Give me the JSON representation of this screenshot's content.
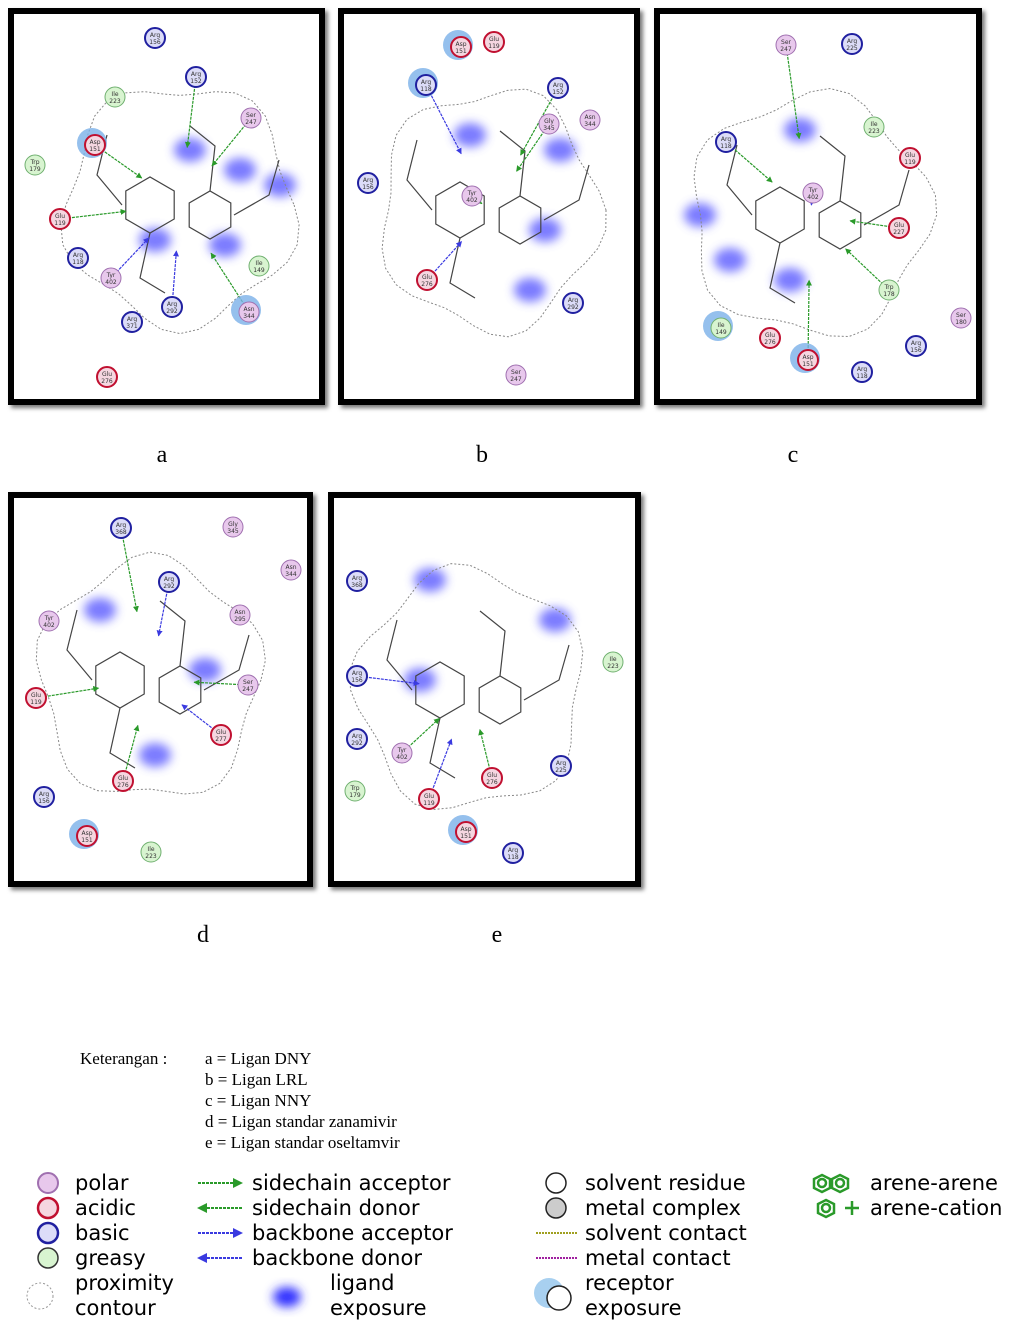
{
  "panels": [
    {
      "label": "a",
      "residues": [
        {
          "name": "Arg",
          "number": "156",
          "type": "basic"
        },
        {
          "name": "Arg",
          "number": "152",
          "type": "basic"
        },
        {
          "name": "Ile",
          "number": "223",
          "type": "greasy"
        },
        {
          "name": "Ser",
          "number": "247",
          "type": "polar"
        },
        {
          "name": "Asp",
          "number": "151",
          "type": "acidic"
        },
        {
          "name": "Trp",
          "number": "179",
          "type": "greasy"
        },
        {
          "name": "Glu",
          "number": "119",
          "type": "acidic"
        },
        {
          "name": "Arg",
          "number": "118",
          "type": "basic"
        },
        {
          "name": "Tyr",
          "number": "402",
          "type": "polar"
        },
        {
          "name": "Ile",
          "number": "149",
          "type": "greasy"
        },
        {
          "name": "Asn",
          "number": "344",
          "type": "polar"
        },
        {
          "name": "Arg",
          "number": "292",
          "type": "basic"
        },
        {
          "name": "Arg",
          "number": "371",
          "type": "basic"
        },
        {
          "name": "Glu",
          "number": "276",
          "type": "acidic"
        }
      ]
    },
    {
      "label": "b",
      "residues": [
        {
          "name": "Asp",
          "number": "151",
          "type": "acidic"
        },
        {
          "name": "Glu",
          "number": "119",
          "type": "acidic"
        },
        {
          "name": "Arg",
          "number": "118",
          "type": "basic"
        },
        {
          "name": "Arg",
          "number": "152",
          "type": "basic"
        },
        {
          "name": "Gly",
          "number": "345",
          "type": "polar"
        },
        {
          "name": "Asn",
          "number": "344",
          "type": "polar"
        },
        {
          "name": "Tyr",
          "number": "402",
          "type": "polar"
        },
        {
          "name": "Arg",
          "number": "156",
          "type": "basic"
        },
        {
          "name": "Glu",
          "number": "276",
          "type": "acidic"
        },
        {
          "name": "Arg",
          "number": "292",
          "type": "basic"
        },
        {
          "name": "Ser",
          "number": "247",
          "type": "polar"
        }
      ]
    },
    {
      "label": "c",
      "residues": [
        {
          "name": "Ser",
          "number": "247",
          "type": "polar"
        },
        {
          "name": "Arg",
          "number": "225",
          "type": "basic"
        },
        {
          "name": "Ile",
          "number": "223",
          "type": "greasy"
        },
        {
          "name": "Glu",
          "number": "119",
          "type": "acidic"
        },
        {
          "name": "Arg",
          "number": "118",
          "type": "basic"
        },
        {
          "name": "Tyr",
          "number": "402",
          "type": "polar"
        },
        {
          "name": "Glu",
          "number": "227",
          "type": "acidic"
        },
        {
          "name": "Trp",
          "number": "178",
          "type": "greasy"
        },
        {
          "name": "Ser",
          "number": "180",
          "type": "polar"
        },
        {
          "name": "Ile",
          "number": "149",
          "type": "greasy"
        },
        {
          "name": "Glu",
          "number": "276",
          "type": "acidic"
        },
        {
          "name": "Arg",
          "number": "156",
          "type": "basic"
        },
        {
          "name": "Asp",
          "number": "151",
          "type": "acidic"
        },
        {
          "name": "Arg",
          "number": "118",
          "type": "basic"
        }
      ]
    },
    {
      "label": "d",
      "residues": [
        {
          "name": "Arg",
          "number": "368",
          "type": "basic"
        },
        {
          "name": "Gly",
          "number": "345",
          "type": "polar"
        },
        {
          "name": "Arg",
          "number": "292",
          "type": "basic"
        },
        {
          "name": "Asn",
          "number": "344",
          "type": "polar"
        },
        {
          "name": "Tyr",
          "number": "402",
          "type": "polar"
        },
        {
          "name": "Asn",
          "number": "295",
          "type": "polar"
        },
        {
          "name": "Ser",
          "number": "247",
          "type": "polar"
        },
        {
          "name": "Glu",
          "number": "119",
          "type": "acidic"
        },
        {
          "name": "Glu",
          "number": "277",
          "type": "acidic"
        },
        {
          "name": "Glu",
          "number": "276",
          "type": "acidic"
        },
        {
          "name": "Arg",
          "number": "156",
          "type": "basic"
        },
        {
          "name": "Asp",
          "number": "151",
          "type": "acidic"
        },
        {
          "name": "Ile",
          "number": "223",
          "type": "greasy"
        }
      ]
    },
    {
      "label": "e",
      "residues": [
        {
          "name": "Arg",
          "number": "368",
          "type": "basic"
        },
        {
          "name": "Ile",
          "number": "223",
          "type": "greasy"
        },
        {
          "name": "Arg",
          "number": "156",
          "type": "basic"
        },
        {
          "name": "Arg",
          "number": "292",
          "type": "basic"
        },
        {
          "name": "Tyr",
          "number": "402",
          "type": "polar"
        },
        {
          "name": "Arg",
          "number": "225",
          "type": "basic"
        },
        {
          "name": "Glu",
          "number": "276",
          "type": "acidic"
        },
        {
          "name": "Trp",
          "number": "179",
          "type": "greasy"
        },
        {
          "name": "Glu",
          "number": "119",
          "type": "acidic"
        },
        {
          "name": "Asp",
          "number": "151",
          "type": "acidic"
        },
        {
          "name": "Arg",
          "number": "118",
          "type": "basic"
        }
      ]
    }
  ],
  "caption": {
    "title": "Keterangan :",
    "items": [
      "a = Ligan DNY",
      "b = Ligan LRL",
      "c = Ligan NNY",
      "d = Ligan standar zanamivir",
      "e = Ligan standar oseltamvir"
    ]
  },
  "legend": {
    "residue_types": [
      "polar",
      "acidic",
      "basic",
      "greasy"
    ],
    "proximity_contour": [
      "proximity",
      "contour"
    ],
    "interactions": [
      "sidechain acceptor",
      "sidechain donor",
      "backbone acceptor",
      "backbone donor"
    ],
    "ligand_exposure": [
      "ligand",
      "exposure"
    ],
    "solvent": [
      "solvent residue",
      "metal complex",
      "solvent contact",
      "metal contact"
    ],
    "receptor_exposure": [
      "receptor",
      "exposure"
    ],
    "arene": [
      "arene-arene",
      "arene-cation"
    ]
  }
}
